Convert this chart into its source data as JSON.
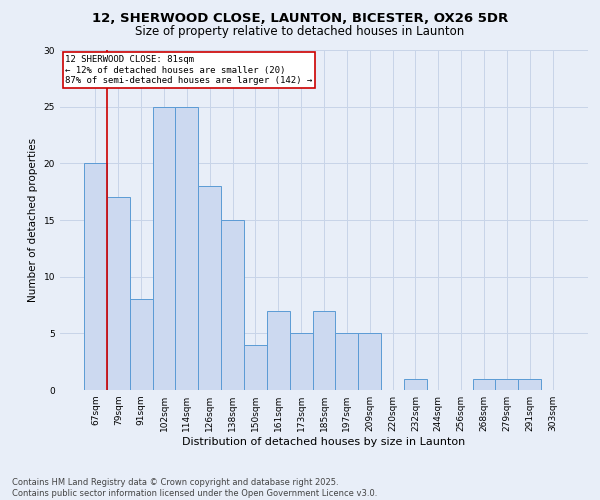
{
  "title1": "12, SHERWOOD CLOSE, LAUNTON, BICESTER, OX26 5DR",
  "title2": "Size of property relative to detached houses in Launton",
  "xlabel": "Distribution of detached houses by size in Launton",
  "ylabel": "Number of detached properties",
  "categories": [
    "67sqm",
    "79sqm",
    "91sqm",
    "102sqm",
    "114sqm",
    "126sqm",
    "138sqm",
    "150sqm",
    "161sqm",
    "173sqm",
    "185sqm",
    "197sqm",
    "209sqm",
    "220sqm",
    "232sqm",
    "244sqm",
    "256sqm",
    "268sqm",
    "279sqm",
    "291sqm",
    "303sqm"
  ],
  "values": [
    20,
    17,
    8,
    25,
    25,
    18,
    15,
    4,
    7,
    5,
    7,
    5,
    5,
    0,
    1,
    0,
    0,
    1,
    1,
    1,
    0
  ],
  "bar_color": "#ccd9f0",
  "bar_edge_color": "#5b9bd5",
  "grid_color": "#c8d4e8",
  "background_color": "#e8eef8",
  "annotation_box_text": "12 SHERWOOD CLOSE: 81sqm\n← 12% of detached houses are smaller (20)\n87% of semi-detached houses are larger (142) →",
  "annotation_box_color": "#ffffff",
  "annotation_box_edge_color": "#cc0000",
  "vline_x": 0.5,
  "vline_color": "#cc0000",
  "ylim": [
    0,
    30
  ],
  "yticks": [
    0,
    5,
    10,
    15,
    20,
    25,
    30
  ],
  "footer_text": "Contains HM Land Registry data © Crown copyright and database right 2025.\nContains public sector information licensed under the Open Government Licence v3.0.",
  "title1_fontsize": 9.5,
  "title2_fontsize": 8.5,
  "xlabel_fontsize": 8,
  "ylabel_fontsize": 7.5,
  "tick_fontsize": 6.5,
  "footer_fontsize": 6,
  "annotation_fontsize": 6.5
}
